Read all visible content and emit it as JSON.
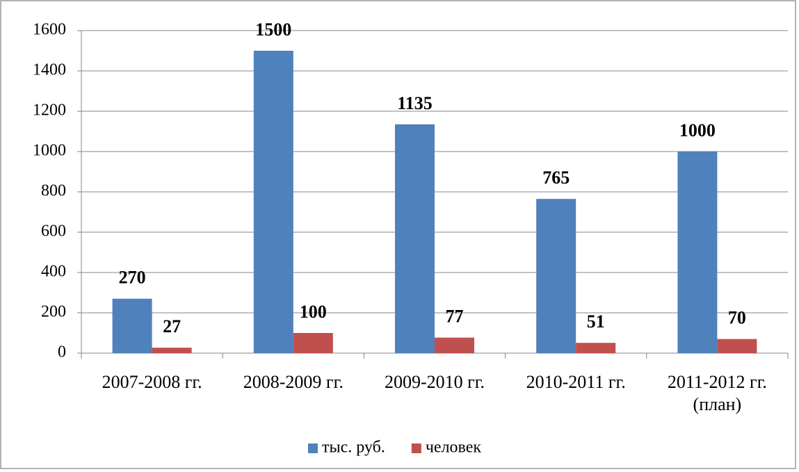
{
  "chart_data": {
    "type": "bar",
    "categories": [
      "2007-2008 гг.",
      "2008-2009 гг.",
      "2009-2010 гг.",
      "2010-2011 гг.",
      "2011-2012 гг. (план)"
    ],
    "series": [
      {
        "name": "тыс. руб.",
        "color": "#4f81bd",
        "values": [
          270,
          1500,
          1135,
          765,
          1000
        ]
      },
      {
        "name": "человек",
        "color": "#c0504d",
        "values": [
          27,
          100,
          77,
          51,
          70
        ]
      }
    ],
    "ylim": [
      0,
      1600
    ],
    "yticks": [
      0,
      200,
      400,
      600,
      800,
      1000,
      1200,
      1400,
      1600
    ],
    "grid": true,
    "legend": "bottom"
  }
}
